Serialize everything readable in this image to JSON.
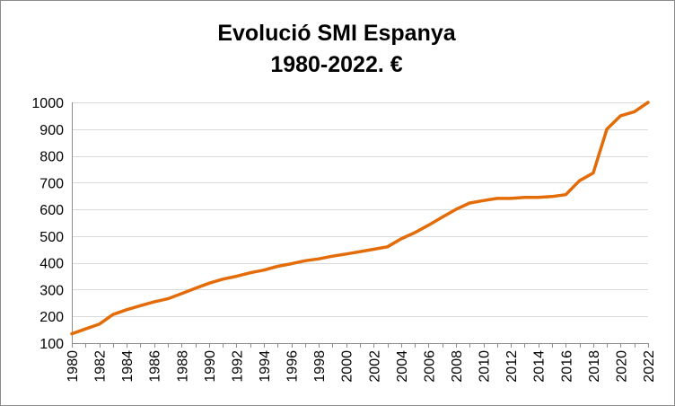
{
  "chart_data": {
    "type": "line",
    "title_lines": [
      "Evolució SMI Espanya",
      "1980-2022. €"
    ],
    "xlabel": "",
    "ylabel": "",
    "ylim": [
      100,
      1000
    ],
    "y_ticks": [
      100,
      200,
      300,
      400,
      500,
      600,
      700,
      800,
      900,
      1000
    ],
    "x_ticks": [
      "1980",
      "1982",
      "1984",
      "1986",
      "1988",
      "1990",
      "1992",
      "1994",
      "1996",
      "1998",
      "2000",
      "2002",
      "2004",
      "2006",
      "2008",
      "2010",
      "2012",
      "2014",
      "2016",
      "2018",
      "2020",
      "2022"
    ],
    "grid": "horizontal",
    "legend": "none",
    "series": [
      {
        "color": "#E36C09",
        "x": [
          1980,
          1981,
          1982,
          1983,
          1984,
          1985,
          1986,
          1987,
          1988,
          1989,
          1990,
          1991,
          1992,
          1993,
          1994,
          1995,
          1996,
          1997,
          1998,
          1999,
          2000,
          2001,
          2002,
          2003,
          2004,
          2005,
          2006,
          2007,
          2008,
          2009,
          2010,
          2011,
          2012,
          2013,
          2014,
          2015,
          2016,
          2017,
          2018,
          2019,
          2020,
          2021,
          2022
        ],
        "values": [
          135,
          153,
          171,
          207,
          225,
          240,
          254,
          266,
          285,
          305,
          324,
          339,
          350,
          363,
          373,
          387,
          397,
          408,
          415,
          425,
          433,
          442,
          451,
          460,
          490,
          513,
          541,
          571,
          600,
          624,
          633,
          641,
          641,
          645,
          645,
          648,
          655,
          707,
          736,
          900,
          950,
          965,
          1000
        ]
      }
    ]
  }
}
